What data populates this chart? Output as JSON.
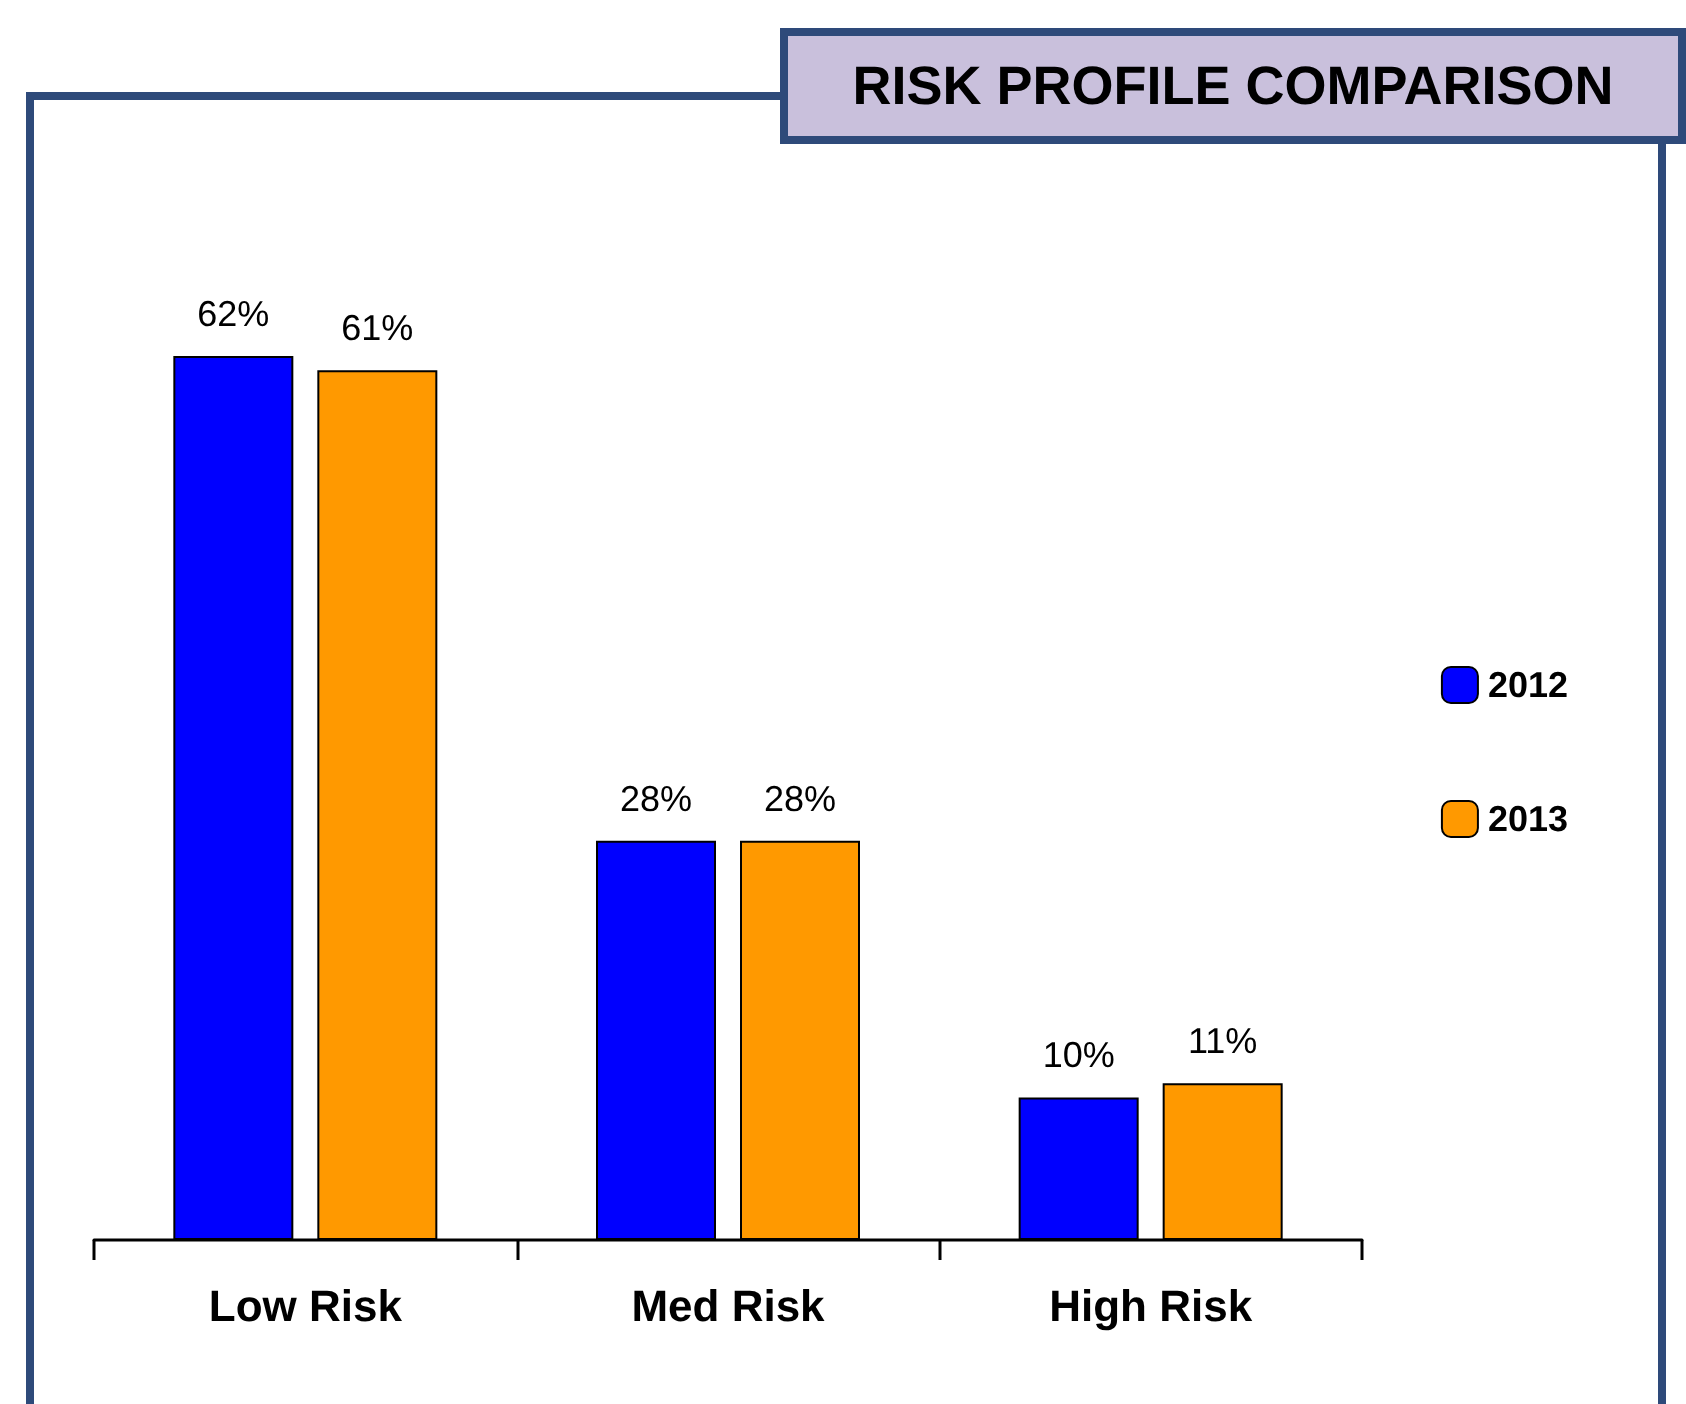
{
  "chart_data": {
    "type": "bar",
    "title": "RISK PROFILE COMPARISON",
    "categories": [
      "Low Risk",
      "Med Risk",
      "High Risk"
    ],
    "series": [
      {
        "name": "2012",
        "color": "#0000ff",
        "values": [
          62,
          28,
          10
        ],
        "value_labels": [
          "62%",
          "28%",
          "10%"
        ]
      },
      {
        "name": "2013",
        "color": "#ff9900",
        "values": [
          61,
          28,
          11
        ],
        "value_labels": [
          "61%",
          "28%",
          "11%"
        ]
      }
    ],
    "legend": "right"
  }
}
